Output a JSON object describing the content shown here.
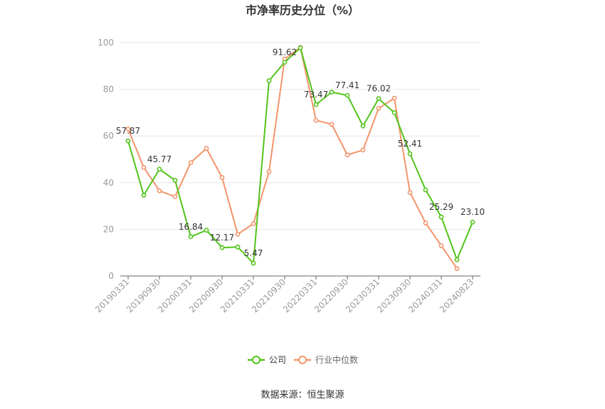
{
  "chart_data": {
    "type": "line",
    "title": "市净率历史分位（%）",
    "xlabel": "",
    "ylabel": "",
    "ylim": [
      0,
      100
    ],
    "y_ticks": [
      0,
      20,
      40,
      60,
      80,
      100
    ],
    "x_tick_labels": [
      "20190331",
      "20190930",
      "20200331",
      "20200930",
      "20210331",
      "20210930",
      "20220331",
      "20220930",
      "20230331",
      "20230930",
      "20240331",
      "20240823"
    ],
    "x_tick_positions": [
      0,
      2,
      4,
      6,
      8,
      10,
      12,
      14,
      16,
      18,
      20,
      22
    ],
    "n_points": 23,
    "grid": true,
    "legend_placement": "bottom",
    "series": [
      {
        "name": "公司",
        "color": "#52c41a",
        "values": [
          57.87,
          34.6,
          45.77,
          41.0,
          16.84,
          19.6,
          12.17,
          12.4,
          5.47,
          83.7,
          91.62,
          97.8,
          73.47,
          78.8,
          77.41,
          64.3,
          76.02,
          70.0,
          52.41,
          36.9,
          25.29,
          7.0,
          23.1
        ],
        "labels": {
          "0": "57.87",
          "2": "45.77",
          "4": "16.84",
          "6": "12.17",
          "8": "5.47",
          "10": "91.62",
          "12": "73.47",
          "14": "77.41",
          "16": "76.02",
          "18": "52.41",
          "20": "25.29",
          "22": "23.10"
        }
      },
      {
        "name": "行业中位数",
        "color": "#f4946b",
        "values": [
          63.0,
          46.5,
          36.5,
          34.0,
          48.6,
          54.7,
          42.2,
          17.9,
          22.4,
          44.7,
          93.0,
          98.0,
          66.7,
          65.0,
          51.9,
          54.0,
          71.9,
          76.2,
          35.8,
          22.7,
          13.0,
          3.2,
          null
        ]
      }
    ],
    "source": "数据来源：恒生聚源"
  }
}
